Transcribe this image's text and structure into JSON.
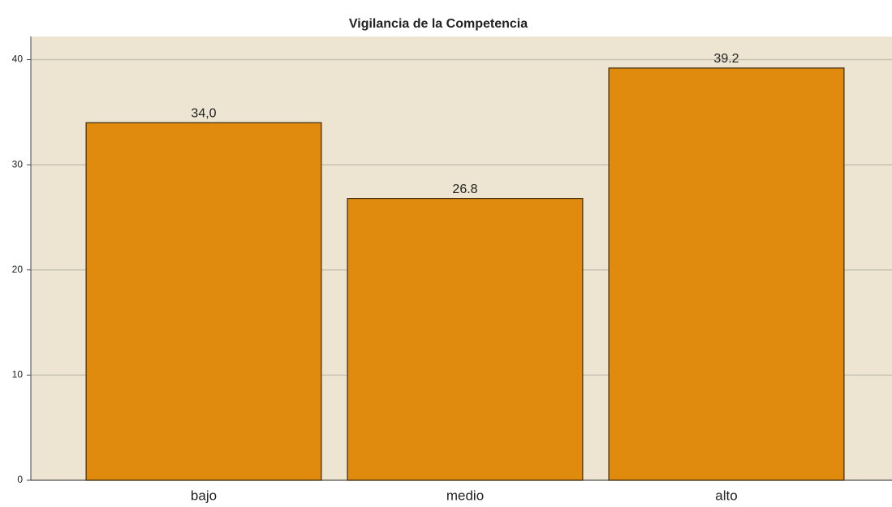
{
  "chart_data": {
    "type": "bar",
    "title": "Vigilancia de la Competencia",
    "categories": [
      "bajo",
      "medio",
      "alto"
    ],
    "values": [
      34.0,
      26.8,
      39.2
    ],
    "value_labels": [
      "34,0",
      "26.8",
      "39.2"
    ],
    "color": "#e08a0e",
    "ylim": [
      0,
      42.2
    ],
    "yticks": [
      0,
      10,
      20,
      30,
      40
    ],
    "grid": true
  }
}
